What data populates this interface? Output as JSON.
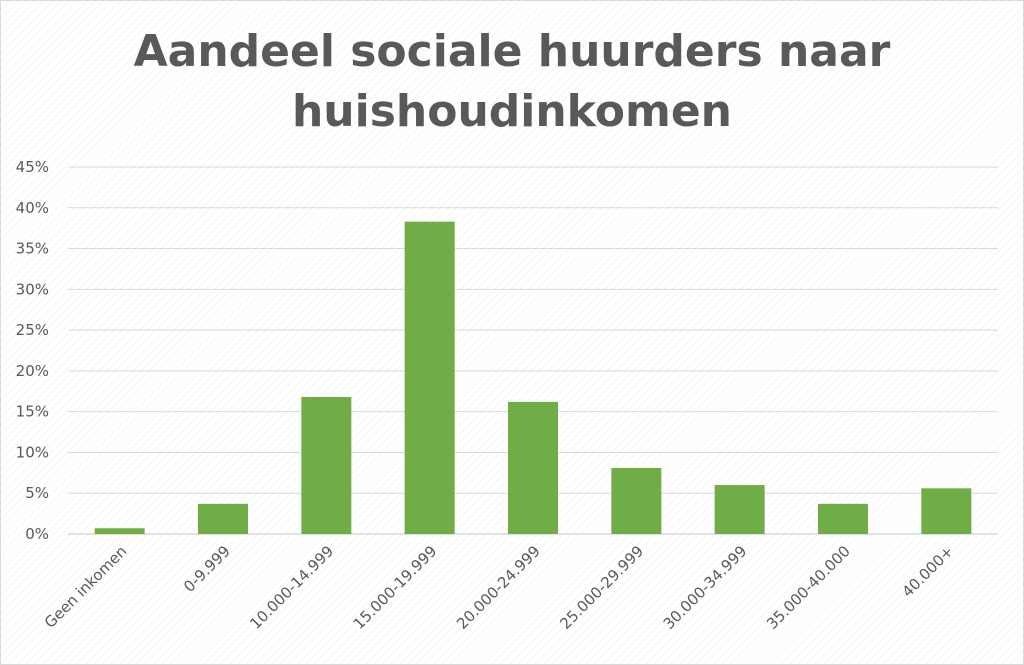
{
  "chart_data": {
    "type": "bar",
    "title": [
      "Aandeel sociale huurders naar",
      "huishoudinkomen"
    ],
    "xlabel": "",
    "ylabel": "",
    "categories": [
      "Geen inkomen",
      "0-9.999",
      "10.000-14.999",
      "15.000-19.999",
      "20.000-24.999",
      "25.000-29.999",
      "30.000-34.999",
      "35.000-40.000",
      "40.000+"
    ],
    "values": [
      0.7,
      3.7,
      16.8,
      38.3,
      16.2,
      8.1,
      6.0,
      3.7,
      5.6
    ],
    "ylim": [
      0,
      45
    ],
    "yticks": [
      "0%",
      "5%",
      "10%",
      "15%",
      "20%",
      "25%",
      "30%",
      "35%",
      "40%",
      "45%"
    ],
    "grid": true,
    "legend": "none",
    "bar_color": "#70ad47",
    "grid_color": "#d9d9d9",
    "text_color": "#595959"
  }
}
